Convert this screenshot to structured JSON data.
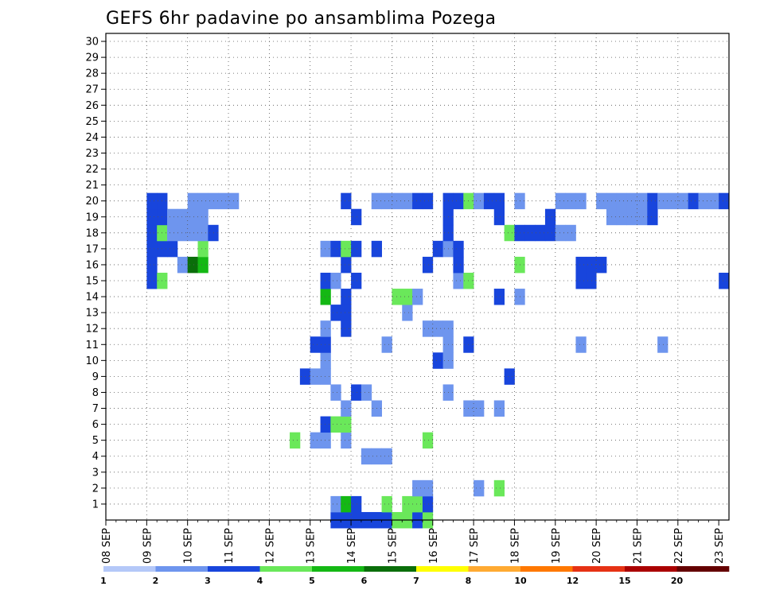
{
  "chart_data": {
    "type": "heatmap",
    "title": "GEFS 6hr padavine po ansamblima Pozega",
    "y_categories": [
      "1",
      "2",
      "3",
      "4",
      "5",
      "6",
      "7",
      "8",
      "9",
      "10",
      "11",
      "12",
      "13",
      "14",
      "15",
      "16",
      "17",
      "18",
      "19",
      "20",
      "21",
      "22",
      "23",
      "24",
      "25",
      "26",
      "27",
      "28",
      "29",
      "30"
    ],
    "x_tick_labels": [
      "08 SEP",
      "09 SEP",
      "10 SEP",
      "11 SEP",
      "12 SEP",
      "13 SEP",
      "14 SEP",
      "15 SEP",
      "16 SEP",
      "17 SEP",
      "18 SEP",
      "19 SEP",
      "20 SEP",
      "21 SEP",
      "22 SEP",
      "23 SEP"
    ],
    "x_steps": 61,
    "grid": true,
    "legend": {
      "position": "bottom",
      "colors": [
        "#b4c8f8",
        "#6e95ee",
        "#1845dc",
        "#6ae85a",
        "#14b814",
        "#0a6e0a",
        "#ffff00",
        "#ffaa32",
        "#ff7800",
        "#e63214",
        "#aa0000",
        "#640000"
      ],
      "labels": [
        "1",
        "2",
        "3",
        "4",
        "5",
        "6",
        "7",
        "8",
        "10",
        "12",
        "15",
        "20"
      ]
    },
    "cells": [
      [
        0,
        22,
        2
      ],
      [
        0,
        23,
        2
      ],
      [
        0,
        24,
        2
      ],
      [
        0,
        25,
        2
      ],
      [
        0,
        26,
        2
      ],
      [
        0,
        27,
        2
      ],
      [
        0,
        28,
        3
      ],
      [
        0,
        29,
        3
      ],
      [
        0,
        30,
        2
      ],
      [
        0,
        31,
        3
      ],
      [
        1,
        22,
        1
      ],
      [
        1,
        23,
        4
      ],
      [
        1,
        24,
        2
      ],
      [
        1,
        27,
        3
      ],
      [
        1,
        29,
        3
      ],
      [
        1,
        30,
        3
      ],
      [
        1,
        31,
        2
      ],
      [
        2,
        30,
        1
      ],
      [
        2,
        31,
        1
      ],
      [
        2,
        36,
        1
      ],
      [
        2,
        38,
        3
      ],
      [
        4,
        25,
        1
      ],
      [
        4,
        26,
        1
      ],
      [
        4,
        27,
        1
      ],
      [
        5,
        18,
        3
      ],
      [
        5,
        20,
        1
      ],
      [
        5,
        21,
        1
      ],
      [
        5,
        23,
        1
      ],
      [
        5,
        31,
        3
      ],
      [
        6,
        21,
        2
      ],
      [
        6,
        22,
        3
      ],
      [
        6,
        23,
        3
      ],
      [
        7,
        23,
        1
      ],
      [
        7,
        26,
        1
      ],
      [
        7,
        35,
        1
      ],
      [
        7,
        36,
        1
      ],
      [
        7,
        38,
        1
      ],
      [
        8,
        22,
        1
      ],
      [
        8,
        24,
        2
      ],
      [
        8,
        25,
        1
      ],
      [
        8,
        33,
        1
      ],
      [
        9,
        19,
        2
      ],
      [
        9,
        20,
        1
      ],
      [
        9,
        21,
        1
      ],
      [
        9,
        39,
        2
      ],
      [
        10,
        21,
        1
      ],
      [
        10,
        32,
        2
      ],
      [
        10,
        33,
        1
      ],
      [
        11,
        20,
        2
      ],
      [
        11,
        21,
        2
      ],
      [
        11,
        27,
        1
      ],
      [
        11,
        33,
        1
      ],
      [
        11,
        35,
        2
      ],
      [
        11,
        46,
        1
      ],
      [
        11,
        54,
        1
      ],
      [
        12,
        21,
        1
      ],
      [
        12,
        23,
        2
      ],
      [
        12,
        31,
        1
      ],
      [
        12,
        32,
        1
      ],
      [
        12,
        33,
        1
      ],
      [
        13,
        22,
        2
      ],
      [
        13,
        23,
        2
      ],
      [
        13,
        29,
        1
      ],
      [
        14,
        21,
        4
      ],
      [
        14,
        23,
        2
      ],
      [
        14,
        28,
        3
      ],
      [
        14,
        29,
        3
      ],
      [
        14,
        30,
        1
      ],
      [
        14,
        38,
        2
      ],
      [
        14,
        40,
        1
      ],
      [
        15,
        4,
        2
      ],
      [
        15,
        5,
        3
      ],
      [
        15,
        21,
        2
      ],
      [
        15,
        22,
        1
      ],
      [
        15,
        24,
        2
      ],
      [
        15,
        34,
        1
      ],
      [
        15,
        35,
        3
      ],
      [
        15,
        46,
        2
      ],
      [
        15,
        47,
        2
      ],
      [
        15,
        60,
        2
      ],
      [
        16,
        4,
        2
      ],
      [
        16,
        7,
        1
      ],
      [
        16,
        8,
        5
      ],
      [
        16,
        9,
        4
      ],
      [
        16,
        23,
        2
      ],
      [
        16,
        31,
        2
      ],
      [
        16,
        34,
        2
      ],
      [
        16,
        40,
        3
      ],
      [
        16,
        46,
        2
      ],
      [
        16,
        47,
        2
      ],
      [
        16,
        48,
        2
      ],
      [
        17,
        4,
        2
      ],
      [
        17,
        5,
        2
      ],
      [
        17,
        6,
        2
      ],
      [
        17,
        9,
        3
      ],
      [
        17,
        21,
        1
      ],
      [
        17,
        22,
        2
      ],
      [
        17,
        23,
        3
      ],
      [
        17,
        24,
        2
      ],
      [
        17,
        26,
        2
      ],
      [
        17,
        32,
        2
      ],
      [
        17,
        33,
        1
      ],
      [
        17,
        34,
        2
      ],
      [
        18,
        4,
        2
      ],
      [
        18,
        5,
        3
      ],
      [
        18,
        6,
        1
      ],
      [
        18,
        7,
        1
      ],
      [
        18,
        8,
        1
      ],
      [
        18,
        9,
        1
      ],
      [
        18,
        10,
        2
      ],
      [
        18,
        33,
        2
      ],
      [
        18,
        39,
        3
      ],
      [
        18,
        40,
        2
      ],
      [
        18,
        41,
        2
      ],
      [
        18,
        42,
        2
      ],
      [
        18,
        43,
        2
      ],
      [
        18,
        44,
        1
      ],
      [
        18,
        45,
        1
      ],
      [
        19,
        4,
        2
      ],
      [
        19,
        5,
        2
      ],
      [
        19,
        6,
        1
      ],
      [
        19,
        7,
        1
      ],
      [
        19,
        8,
        1
      ],
      [
        19,
        9,
        1
      ],
      [
        19,
        24,
        2
      ],
      [
        19,
        33,
        2
      ],
      [
        19,
        38,
        2
      ],
      [
        19,
        43,
        2
      ],
      [
        19,
        49,
        1
      ],
      [
        19,
        50,
        1
      ],
      [
        19,
        51,
        1
      ],
      [
        19,
        52,
        1
      ],
      [
        19,
        53,
        2
      ],
      [
        20,
        4,
        2
      ],
      [
        20,
        5,
        2
      ],
      [
        20,
        8,
        1
      ],
      [
        20,
        9,
        1
      ],
      [
        20,
        10,
        1
      ],
      [
        20,
        11,
        1
      ],
      [
        20,
        12,
        1
      ],
      [
        20,
        23,
        2
      ],
      [
        20,
        26,
        1
      ],
      [
        20,
        27,
        1
      ],
      [
        20,
        28,
        1
      ],
      [
        20,
        29,
        1
      ],
      [
        20,
        30,
        2
      ],
      [
        20,
        31,
        2
      ],
      [
        20,
        33,
        2
      ],
      [
        20,
        34,
        2
      ],
      [
        20,
        35,
        3
      ],
      [
        20,
        36,
        1
      ],
      [
        20,
        37,
        2
      ],
      [
        20,
        38,
        2
      ],
      [
        20,
        40,
        1
      ],
      [
        20,
        44,
        1
      ],
      [
        20,
        45,
        1
      ],
      [
        20,
        46,
        1
      ],
      [
        20,
        48,
        1
      ],
      [
        20,
        49,
        1
      ],
      [
        20,
        50,
        1
      ],
      [
        20,
        51,
        1
      ],
      [
        20,
        52,
        1
      ],
      [
        20,
        53,
        2
      ],
      [
        20,
        54,
        1
      ],
      [
        20,
        55,
        1
      ],
      [
        20,
        56,
        1
      ],
      [
        20,
        57,
        2
      ],
      [
        20,
        58,
        1
      ],
      [
        20,
        59,
        1
      ],
      [
        20,
        60,
        2
      ]
    ]
  }
}
